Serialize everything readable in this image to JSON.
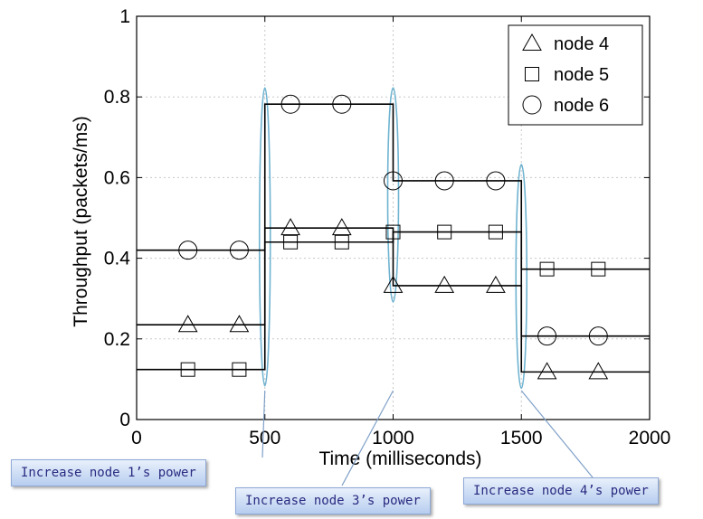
{
  "chart_data": {
    "type": "line",
    "xlabel": "Time (milliseconds)",
    "ylabel": "Throughput (packets/ms)",
    "xlim": [
      0,
      2000
    ],
    "ylim": [
      0,
      1
    ],
    "xticks": [
      "0",
      "500",
      "1000",
      "1500",
      "2000"
    ],
    "yticks": [
      "0",
      "0.2",
      "0.4",
      "0.6",
      "0.8",
      "1"
    ],
    "grid": true,
    "legend_position": "top-right",
    "series": [
      {
        "name": "node 4",
        "marker": "triangle",
        "steps": [
          {
            "x0": 0,
            "x1": 500,
            "y": 0.235
          },
          {
            "x0": 500,
            "x1": 1000,
            "y": 0.475
          },
          {
            "x0": 1000,
            "x1": 1500,
            "y": 0.332
          },
          {
            "x0": 1500,
            "x1": 2000,
            "y": 0.118
          }
        ],
        "markers_x": [
          200,
          400,
          600,
          800,
          1000,
          1200,
          1400,
          1600,
          1800
        ]
      },
      {
        "name": "node 5",
        "marker": "square",
        "steps": [
          {
            "x0": 0,
            "x1": 500,
            "y": 0.124
          },
          {
            "x0": 500,
            "x1": 1000,
            "y": 0.44
          },
          {
            "x0": 1000,
            "x1": 1500,
            "y": 0.465
          },
          {
            "x0": 1500,
            "x1": 2000,
            "y": 0.373
          }
        ],
        "markers_x": [
          200,
          400,
          600,
          800,
          1000,
          1200,
          1400,
          1600,
          1800
        ]
      },
      {
        "name": "node 6",
        "marker": "circle",
        "steps": [
          {
            "x0": 0,
            "x1": 500,
            "y": 0.42
          },
          {
            "x0": 500,
            "x1": 1000,
            "y": 0.782
          },
          {
            "x0": 1000,
            "x1": 1500,
            "y": 0.592
          },
          {
            "x0": 1500,
            "x1": 2000,
            "y": 0.207
          }
        ],
        "markers_x": [
          200,
          400,
          600,
          800,
          1000,
          1200,
          1400,
          1600,
          1800
        ]
      }
    ],
    "annotations": [
      {
        "text": "Increase node 1’s power",
        "x": 500
      },
      {
        "text": "Increase node 3’s power",
        "x": 1000
      },
      {
        "text": "Increase node 4’s power",
        "x": 1500
      }
    ],
    "colors": {
      "line": "#000000",
      "grid": "#c8c8c8",
      "highlight": "#6fb3d0",
      "pointer": "#7fa0c8"
    }
  }
}
